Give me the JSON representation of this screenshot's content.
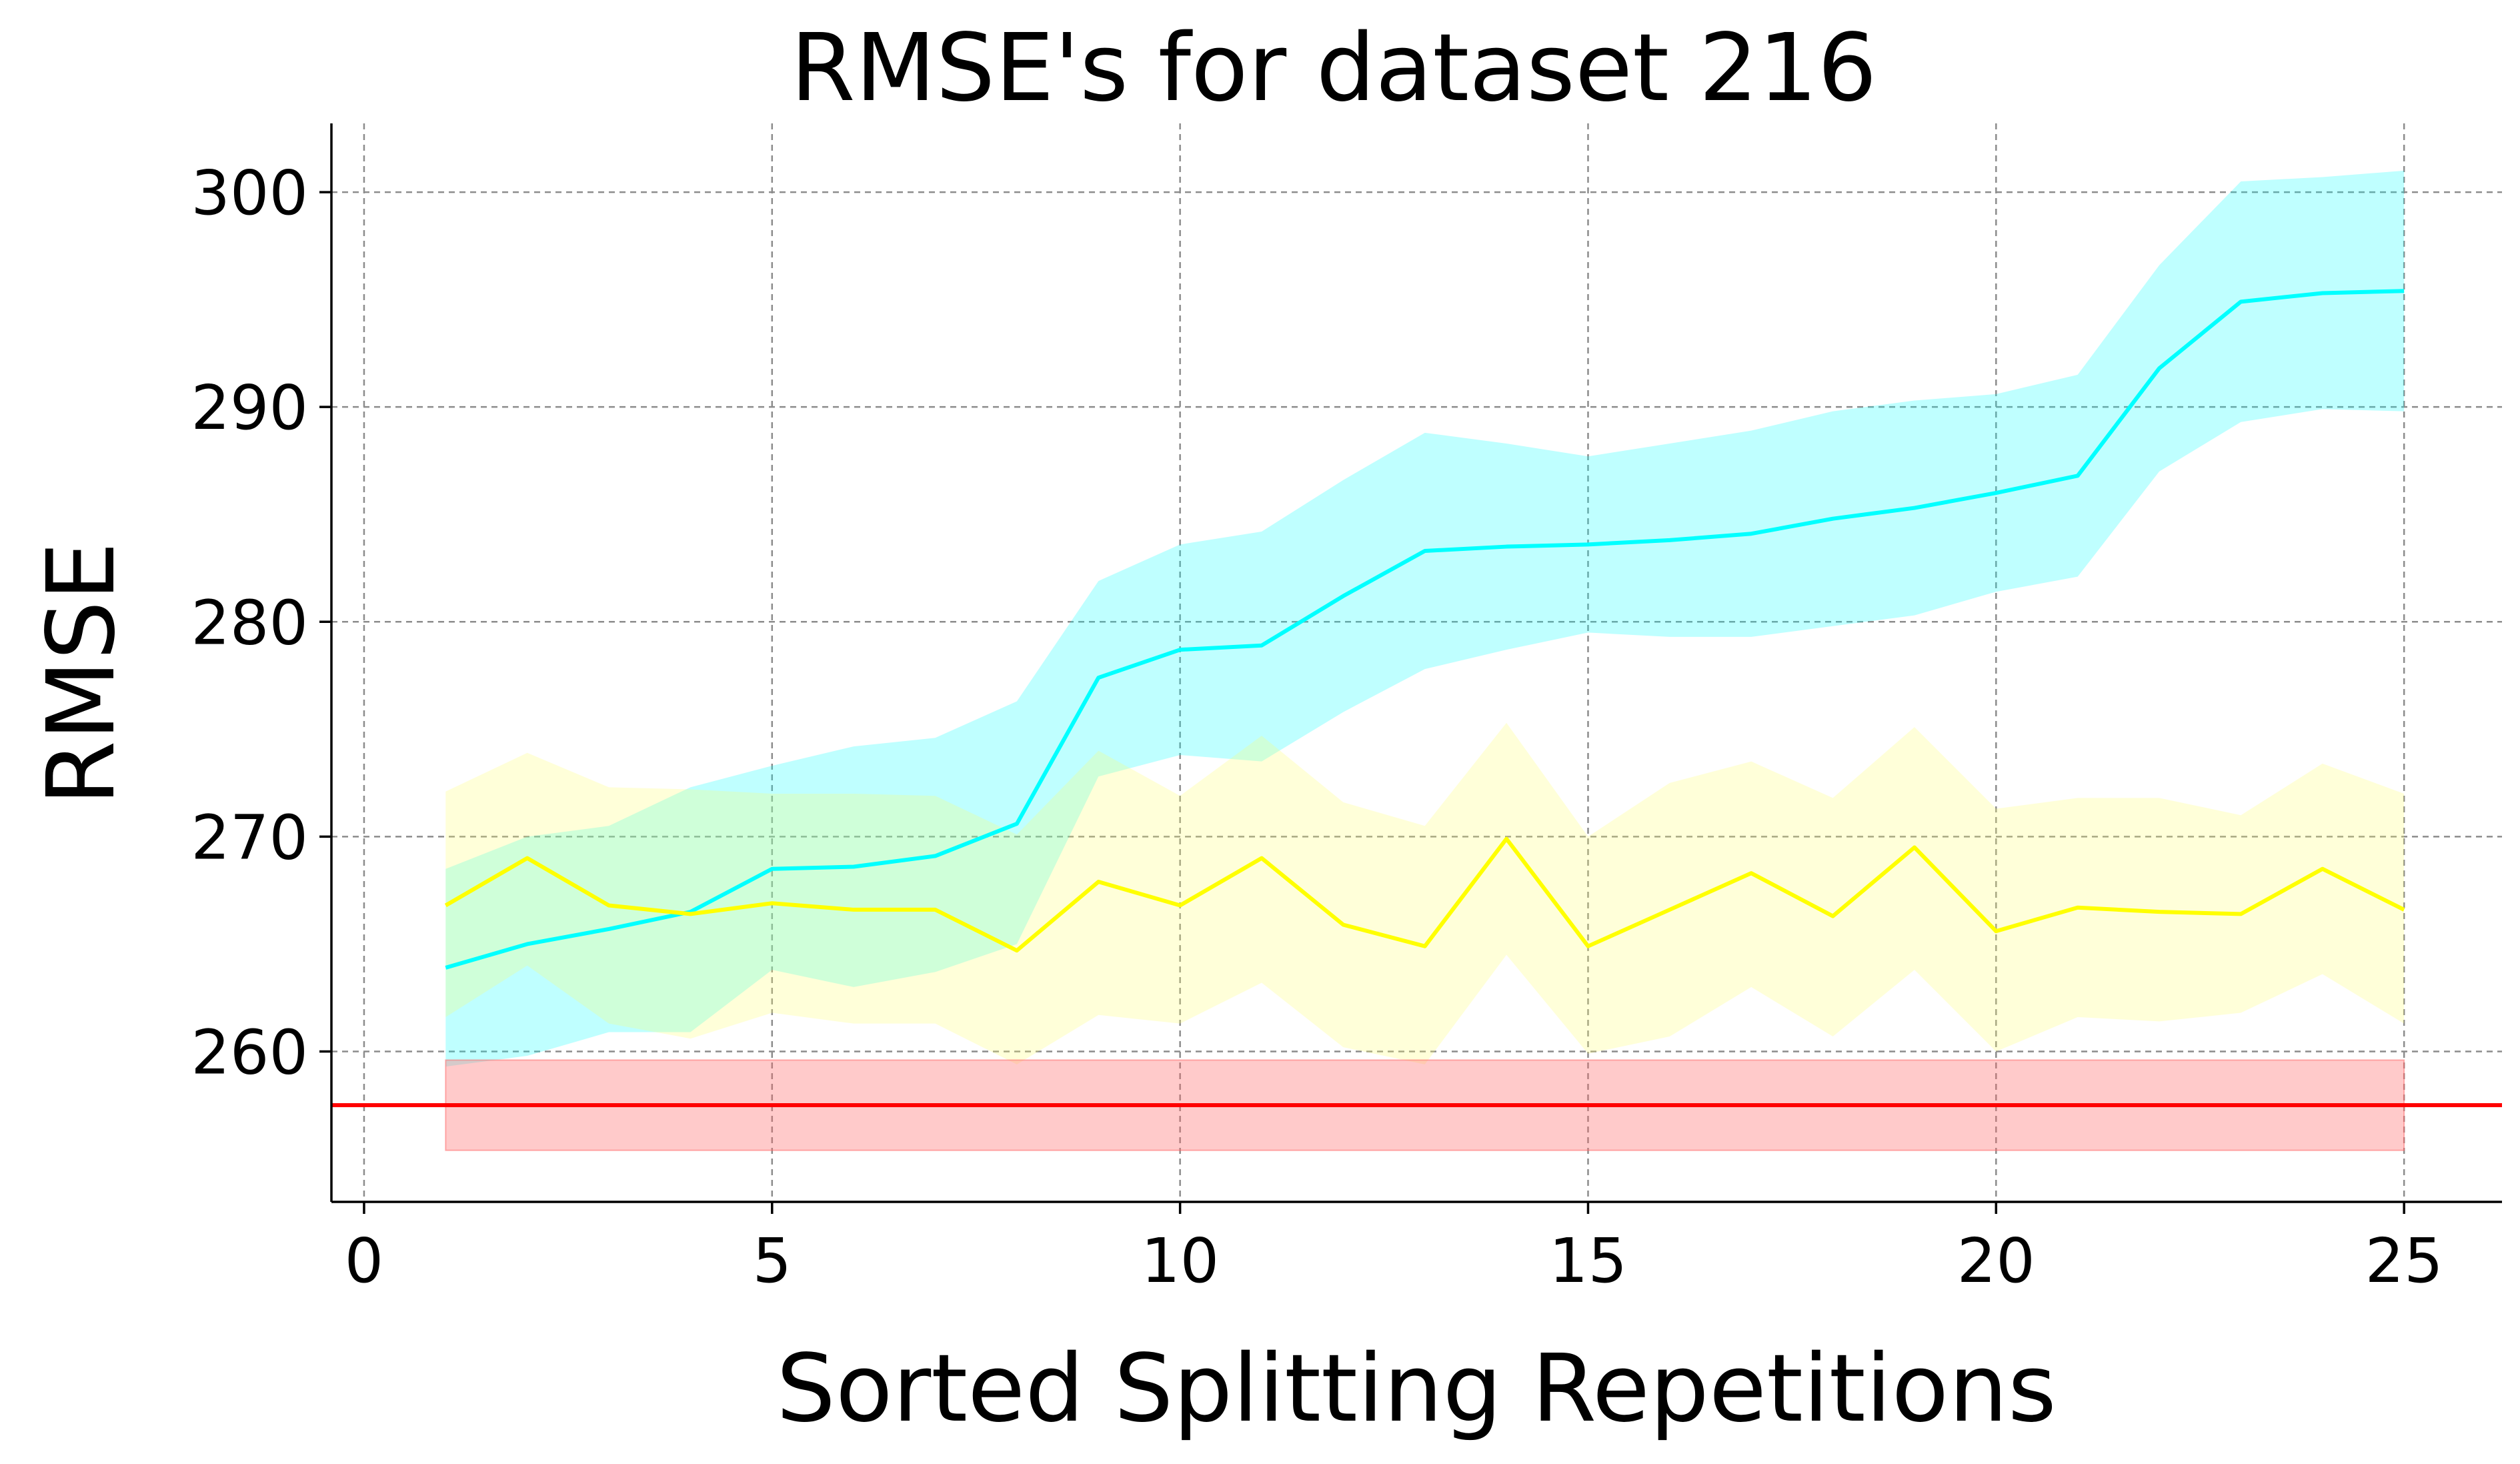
{
  "chart_data": {
    "type": "line",
    "title": "RMSE's for dataset 216",
    "xlabel": "Sorted Splitting Repetitions",
    "ylabel": "RMSE",
    "xlim": [
      -0.4,
      26.2
    ],
    "ylim": [
      253.0,
      303.2
    ],
    "xticks": [
      0,
      5,
      10,
      15,
      20,
      25
    ],
    "yticks": [
      260,
      270,
      280,
      290,
      300
    ],
    "grid": true,
    "x": [
      1,
      2,
      3,
      4,
      5,
      6,
      7,
      8,
      9,
      10,
      11,
      12,
      13,
      14,
      15,
      16,
      17,
      18,
      19,
      20,
      21,
      22,
      23,
      24,
      25
    ],
    "series": [
      {
        "color": "#00ffff",
        "band_color": "#00ffff",
        "values": [
          263.9,
          265.0,
          265.7,
          266.5,
          268.5,
          268.6,
          269.1,
          270.6,
          277.4,
          278.7,
          278.9,
          281.2,
          283.3,
          283.5,
          283.6,
          283.8,
          284.1,
          284.8,
          285.3,
          286.0,
          286.8,
          291.8,
          294.9,
          295.3,
          295.4
        ],
        "upper": [
          268.5,
          270.0,
          270.5,
          272.3,
          273.3,
          274.2,
          274.6,
          276.3,
          281.9,
          283.6,
          284.2,
          286.6,
          288.8,
          288.3,
          287.7,
          288.3,
          288.9,
          289.8,
          290.3,
          290.6,
          291.5,
          296.6,
          300.5,
          300.7,
          301.0
        ],
        "lower": [
          259.3,
          259.8,
          260.9,
          260.9,
          263.8,
          263.0,
          263.7,
          265.0,
          272.8,
          273.8,
          273.5,
          275.8,
          277.8,
          278.7,
          279.5,
          279.3,
          279.3,
          279.8,
          280.3,
          281.4,
          282.1,
          287.0,
          289.3,
          289.9,
          289.8
        ]
      },
      {
        "color": "#ffff00",
        "band_color": "#ffff66",
        "values": [
          266.8,
          269.0,
          266.8,
          266.4,
          266.9,
          266.6,
          266.6,
          264.7,
          267.9,
          266.8,
          269.0,
          265.9,
          264.9,
          269.9,
          264.9,
          266.6,
          268.3,
          266.3,
          269.5,
          265.6,
          266.7,
          266.5,
          266.4,
          268.5,
          266.6
        ],
        "upper": [
          272.1,
          273.9,
          272.3,
          272.2,
          272.0,
          272.0,
          271.9,
          270.1,
          274.0,
          271.9,
          274.7,
          271.6,
          270.5,
          275.3,
          270.0,
          272.5,
          273.5,
          271.8,
          275.1,
          271.3,
          271.8,
          271.8,
          271.0,
          273.4,
          272.0
        ],
        "lower": [
          261.6,
          264.0,
          261.3,
          260.6,
          261.8,
          261.3,
          261.3,
          259.4,
          261.7,
          261.3,
          263.2,
          260.2,
          259.4,
          264.5,
          259.9,
          260.7,
          263.0,
          260.7,
          263.8,
          260.0,
          261.6,
          261.4,
          261.8,
          263.6,
          261.3
        ]
      },
      {
        "color": "#ff0000",
        "band_color": "#ff6666",
        "values": [
          257.5,
          257.5
        ],
        "x": [
          -0.4,
          26.2
        ],
        "band_x": [
          1,
          25
        ],
        "upper_const": 259.6,
        "lower_const": 255.4
      }
    ]
  }
}
